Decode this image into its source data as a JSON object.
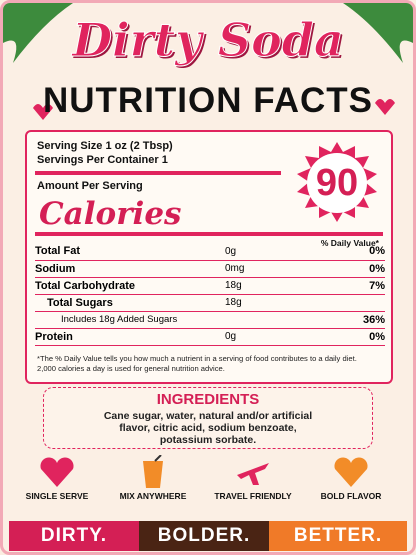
{
  "header": {
    "title": "Dirty Soda",
    "subtitle": "NUTRITION FACTS"
  },
  "label": {
    "serving_size": "Serving Size  1 oz (2 Tbsp)",
    "servings_per_container": "Servings Per Container  1",
    "amount_per_serving": "Amount Per Serving",
    "calories_label": "Calories",
    "calories": "90",
    "dv_header": "% Daily Value*",
    "rows": [
      {
        "name": "Total Fat",
        "amount": "0g",
        "dv": "0%"
      },
      {
        "name": "Sodium",
        "amount": "0mg",
        "dv": "0%"
      },
      {
        "name": "Total Carbohydrate",
        "amount": "18g",
        "dv": "7%"
      },
      {
        "name": "Total Sugars",
        "amount": "18g"
      },
      {
        "name": "Includes 18g Added Sugars",
        "dv": "36%"
      },
      {
        "name": "Protein",
        "amount": "0g",
        "dv": "0%"
      }
    ],
    "footnote": "*The % Daily Value tells you how much a nutrient in a serving of food contributes to a daily diet. 2,000 calories a day is used for general nutrition advice."
  },
  "ingredients": {
    "title": "INGREDIENTS",
    "text": "Cane sugar, water, natural and/or artificial flavor, citric acid, sodium benzoate, potassium sorbate."
  },
  "features": [
    "SINGLE SERVE",
    "MIX ANYWHERE",
    "TRAVEL FRIENDLY",
    "BOLD FLAVOR"
  ],
  "banner": [
    "DIRTY.",
    "BOLDER.",
    "BETTER."
  ]
}
